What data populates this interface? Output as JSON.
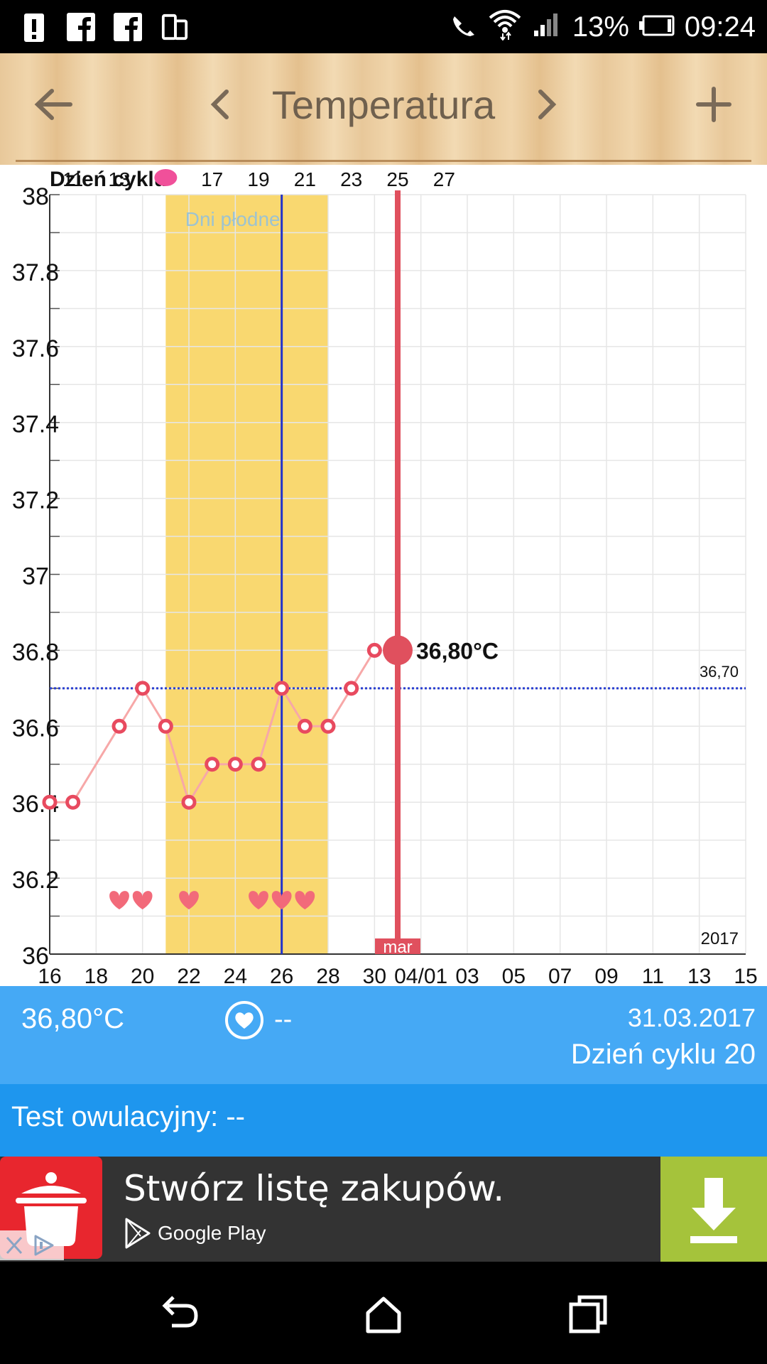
{
  "status_bar": {
    "battery_percent": "13%",
    "time": "09:24",
    "icons_left": [
      "alert-icon",
      "facebook-icon",
      "facebook-icon",
      "screen-rotate-icon"
    ],
    "icons_right": [
      "vibrate-icon",
      "wifi-icon",
      "signal-icon",
      "battery-icon"
    ]
  },
  "toolbar": {
    "title": "Temperatura",
    "back_icon": "arrow-left-icon",
    "prev_icon": "chevron-left-icon",
    "next_icon": "chevron-right-icon",
    "add_icon": "plus-icon"
  },
  "chart_data": {
    "type": "line",
    "cycle_day_label": "Dzień cyklu",
    "cycle_day_ticks": [
      "11",
      "13",
      "",
      "17",
      "19",
      "21",
      "23",
      "25",
      "27"
    ],
    "fertile_label": "Dni płodne",
    "y_ticks": [
      "38",
      "37.8",
      "37.6",
      "37.4",
      "37.2",
      "37",
      "36.8",
      "36.6",
      "36.4",
      "36.2",
      "36"
    ],
    "ylim": [
      36,
      38
    ],
    "x_tick_labels": [
      "16",
      "18",
      "20",
      "22",
      "24",
      "26",
      "28",
      "30",
      "04/01",
      "03",
      "05",
      "07",
      "09",
      "11",
      "13",
      "15"
    ],
    "x_start_day": 16,
    "x_end_day": 46,
    "series": [
      {
        "x": [
          16,
          17,
          19,
          20,
          21,
          22,
          23,
          24,
          25,
          26,
          27,
          28,
          29,
          30
        ],
        "values": [
          36.4,
          36.4,
          36.6,
          36.7,
          36.6,
          36.4,
          36.5,
          36.5,
          36.5,
          36.7,
          36.6,
          36.6,
          36.7,
          36.8
        ]
      }
    ],
    "selected": {
      "x": 31,
      "value": 36.8,
      "label": "36,80°C"
    },
    "coverline": {
      "value": 36.7,
      "label": "36,70"
    },
    "fertile_window": [
      21,
      28
    ],
    "ovulation_day": 26,
    "heart_days": [
      19,
      20,
      22,
      25,
      26,
      27
    ],
    "heart_value": 36.14,
    "month_label": "mar",
    "year_label": "2017",
    "colors": {
      "fertile": "#f9d870",
      "line": "#f7a8a8",
      "point": "#e84a5f",
      "selected": "#e0505e",
      "ovulation": "#2233cc",
      "coverline": "#2a3fd1",
      "hearts": "#f26a7a"
    }
  },
  "info": {
    "temperature": "36,80°C",
    "intercourse": "--",
    "date": "31.03.2017",
    "cycle_day": "Dzień cyklu 20"
  },
  "test": {
    "label": "Test owulacyjny: --"
  },
  "ad": {
    "headline": "Stwórz listę zakupów.",
    "store": "Google Play",
    "colors": {
      "icon_bg": "#e8262e",
      "cta_bg": "#a5c33b"
    }
  },
  "nav": {
    "back_icon": "back-icon",
    "home_icon": "home-icon",
    "recents_icon": "recents-icon"
  }
}
